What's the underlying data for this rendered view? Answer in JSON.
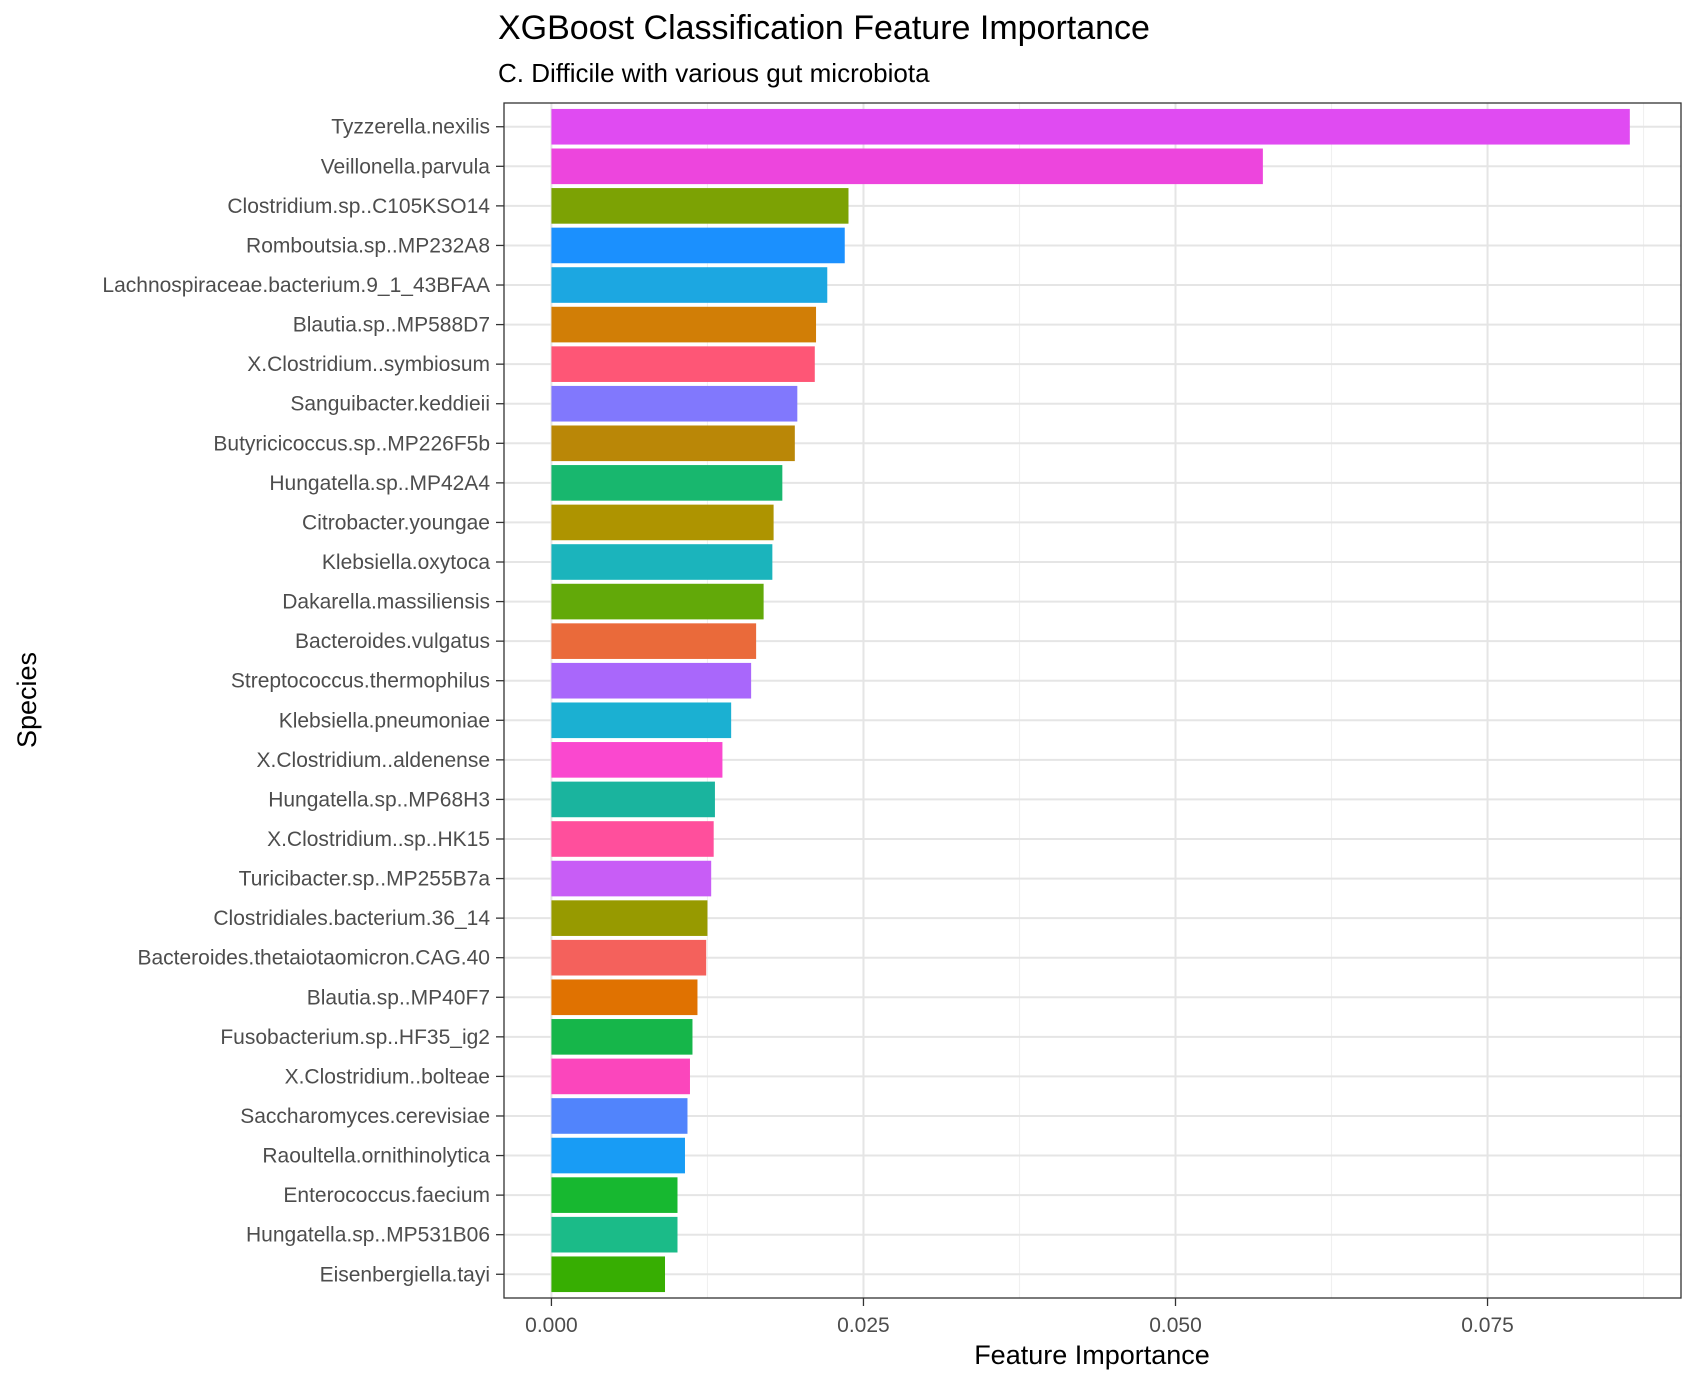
{
  "chart_data": {
    "type": "bar",
    "orientation": "horizontal",
    "title": "XGBoost Classification Feature Importance",
    "subtitle": "C. Difficile with various gut microbiota",
    "xlabel": "Feature Importance",
    "ylabel": "Species",
    "xlim": [
      -0.0038,
      0.0905
    ],
    "xticks": [
      "0.000",
      "0.025",
      "0.050",
      "0.075"
    ],
    "grid": true,
    "legend": "none",
    "categories": [
      "Tyzzerella.nexilis",
      "Veillonella.parvula",
      "Clostridium.sp..C105KSO14",
      "Romboutsia.sp..MP232A8",
      "Lachnospiraceae.bacterium.9_1_43BFAA",
      "Blautia.sp..MP588D7",
      "X.Clostridium..symbiosum",
      "Sanguibacter.keddieii",
      "Butyricicoccus.sp..MP226F5b",
      "Hungatella.sp..MP42A4",
      "Citrobacter.youngae",
      "Klebsiella.oxytoca",
      "Dakarella.massiliensis",
      "Bacteroides.vulgatus",
      "Streptococcus.thermophilus",
      "Klebsiella.pneumoniae",
      "X.Clostridium..aldenense",
      "Hungatella.sp..MP68H3",
      "X.Clostridium..sp..HK15",
      "Turicibacter.sp..MP255B7a",
      "Clostridiales.bacterium.36_14",
      "Bacteroides.thetaiotaomicron.CAG.40",
      "Blautia.sp..MP40F7",
      "Fusobacterium.sp..HF35_ig2",
      "X.Clostridium..bolteae",
      "Saccharomyces.cerevisiae",
      "Raoultella.ornithinolytica",
      "Enterococcus.faecium",
      "Hungatella.sp..MP531B06",
      "Eisenbergiella.tayi"
    ],
    "values": [
      0.0864,
      0.057,
      0.0238,
      0.0235,
      0.0221,
      0.0212,
      0.0211,
      0.0197,
      0.0195,
      0.0185,
      0.0178,
      0.0177,
      0.017,
      0.0164,
      0.016,
      0.0144,
      0.0137,
      0.0131,
      0.013,
      0.0128,
      0.0125,
      0.0124,
      0.0117,
      0.0113,
      0.0111,
      0.0109,
      0.0107,
      0.0101,
      0.0101,
      0.0091
    ],
    "colors": [
      "#E04BF2",
      "#ED45DD",
      "#7CA204",
      "#1B90FE",
      "#1CA7E1",
      "#D17E06",
      "#FE5676",
      "#8178FD",
      "#BA8707",
      "#18B76E",
      "#AE9400",
      "#1BB4BC",
      "#62A909",
      "#EA6A3A",
      "#A967FB",
      "#1BB0D2",
      "#FA48CF",
      "#1AB49E",
      "#FF4F9C",
      "#C85DF6",
      "#979A00",
      "#F4615C",
      "#E07201",
      "#16B64A",
      "#FB46BC",
      "#5184FC",
      "#189CF5",
      "#17B830",
      "#1BBB88",
      "#37AE02"
    ]
  }
}
